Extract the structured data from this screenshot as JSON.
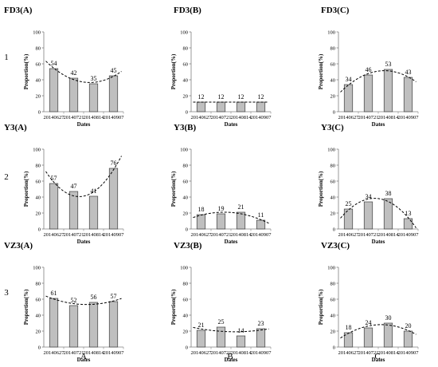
{
  "figure": {
    "row_labels": [
      "1",
      "2",
      "3"
    ],
    "column_labels": [
      "A",
      "B",
      "C"
    ]
  },
  "chart_data": [
    {
      "type": "bar",
      "title": "FD3(A)",
      "categories": [
        "20140627",
        "20140721",
        "20140814",
        "20140907"
      ],
      "values": [
        54,
        42,
        35,
        45
      ],
      "data_labels": [
        "54",
        "42",
        "35",
        "45"
      ],
      "xlabel": "Dates",
      "ylabel": "Proportion(%)",
      "ylim": [
        0,
        100
      ],
      "yticks": [
        "0",
        "20",
        "40",
        "60",
        "80",
        "100"
      ],
      "trendline": {
        "style": "dashed",
        "fit": "polynomial",
        "order": 2
      },
      "grid": false,
      "legend": "none"
    },
    {
      "type": "bar",
      "title": "FD3(B)",
      "categories": [
        "20140627",
        "20140721",
        "20140814",
        "20140907"
      ],
      "values": [
        12,
        12,
        12,
        12
      ],
      "data_labels": [
        "12",
        "12",
        "12",
        "12"
      ],
      "xlabel": "Dates",
      "ylabel": "Proportion(%)",
      "ylim": [
        0,
        100
      ],
      "yticks": [
        "0",
        "20",
        "40",
        "60",
        "80",
        "100"
      ],
      "trendline": {
        "style": "dashed",
        "fit": "polynomial",
        "order": 2
      },
      "grid": false,
      "legend": "none"
    },
    {
      "type": "bar",
      "title": "FD3(C)",
      "categories": [
        "20140627",
        "20140721",
        "20140814",
        "20140907"
      ],
      "values": [
        34,
        46,
        53,
        43
      ],
      "data_labels": [
        "34",
        "46",
        "53",
        "43"
      ],
      "xlabel": "Dates",
      "ylabel": "Proportion(%)",
      "ylim": [
        0,
        100
      ],
      "yticks": [
        "0",
        "20",
        "40",
        "60",
        "80",
        "100"
      ],
      "trendline": {
        "style": "dashed",
        "fit": "polynomial",
        "order": 2
      },
      "grid": false,
      "legend": "none"
    },
    {
      "type": "bar",
      "title": "Y3(A)",
      "categories": [
        "20140627",
        "20140721",
        "20140814",
        "20140907"
      ],
      "values": [
        57,
        47,
        41,
        76
      ],
      "data_labels": [
        "57",
        "47",
        "41",
        "76"
      ],
      "xlabel": "Dates",
      "ylabel": "Proportion(%)",
      "ylim": [
        0,
        100
      ],
      "yticks": [
        "0",
        "20",
        "40",
        "60",
        "80",
        "100"
      ],
      "trendline": {
        "style": "dashed",
        "fit": "polynomial",
        "order": 2
      },
      "grid": false,
      "legend": "none"
    },
    {
      "type": "bar",
      "title": "Y3(B)",
      "categories": [
        "20140627",
        "20140721",
        "20140814",
        "20140907"
      ],
      "values": [
        18,
        19,
        21,
        11
      ],
      "data_labels": [
        "18",
        "19",
        "21",
        "11"
      ],
      "xlabel": "Dates",
      "ylabel": "Proportion(%)",
      "ylim": [
        0,
        100
      ],
      "yticks": [
        "0",
        "20",
        "40",
        "60",
        "80",
        "100"
      ],
      "trendline": {
        "style": "dashed",
        "fit": "polynomial",
        "order": 2
      },
      "grid": false,
      "legend": "none"
    },
    {
      "type": "bar",
      "title": "Y3(C)",
      "categories": [
        "20140627",
        "20140721",
        "20140814",
        "20140907"
      ],
      "values": [
        25,
        34,
        38,
        13
      ],
      "data_labels": [
        "25",
        "34",
        "38",
        "13"
      ],
      "xlabel": "Dates",
      "ylabel": "Proportion(%)",
      "ylim": [
        0,
        100
      ],
      "yticks": [
        "0",
        "20",
        "40",
        "60",
        "80",
        "100"
      ],
      "trendline": {
        "style": "dashed",
        "fit": "polynomial",
        "order": 2
      },
      "grid": false,
      "legend": "none"
    },
    {
      "type": "bar",
      "title": "VZ3(A)",
      "categories": [
        "20140627",
        "20140721",
        "20140814",
        "20140907"
      ],
      "values": [
        61,
        52,
        56,
        57
      ],
      "data_labels": [
        "61",
        "52",
        "56",
        "57"
      ],
      "xlabel": "Dates",
      "ylabel": "Proportion(%)",
      "ylim": [
        0,
        100
      ],
      "yticks": [
        "0",
        "20",
        "40",
        "60",
        "80",
        "100"
      ],
      "trendline": {
        "style": "dashed",
        "fit": "polynomial",
        "order": 2
      },
      "grid": false,
      "legend": "none"
    },
    {
      "type": "bar",
      "title": "VZ3(B)",
      "categories": [
        "20140627",
        "20140721",
        "20140814",
        "20140907"
      ],
      "values": [
        21,
        25,
        14,
        23
      ],
      "data_labels": [
        "21",
        "25",
        "14",
        "23"
      ],
      "xlabel": "Dates",
      "ylabel": "Proportion(%)",
      "ylim": [
        0,
        100
      ],
      "yticks": [
        "0",
        "20",
        "40",
        "60",
        "80",
        "100"
      ],
      "trendline": {
        "style": "dashed",
        "fit": "polynomial",
        "order": 2
      },
      "grid": false,
      "legend": "none"
    },
    {
      "type": "bar",
      "title": "VZ3(C)",
      "categories": [
        "20140627",
        "20140721",
        "20140814",
        "20140907"
      ],
      "values": [
        18,
        24,
        30,
        20
      ],
      "data_labels": [
        "18",
        "24",
        "30",
        "20"
      ],
      "xlabel": "Dates",
      "ylabel": "Proportion(%)",
      "ylim": [
        0,
        100
      ],
      "yticks": [
        "0",
        "20",
        "40",
        "60",
        "80",
        "100"
      ],
      "trendline": {
        "style": "dashed",
        "fit": "polynomial",
        "order": 2
      },
      "grid": false,
      "legend": "none"
    }
  ],
  "colors": {
    "bar_fill": "#bfbfbf",
    "bar_stroke": "#404040",
    "axis": "#808080",
    "trendline": "#000000"
  }
}
